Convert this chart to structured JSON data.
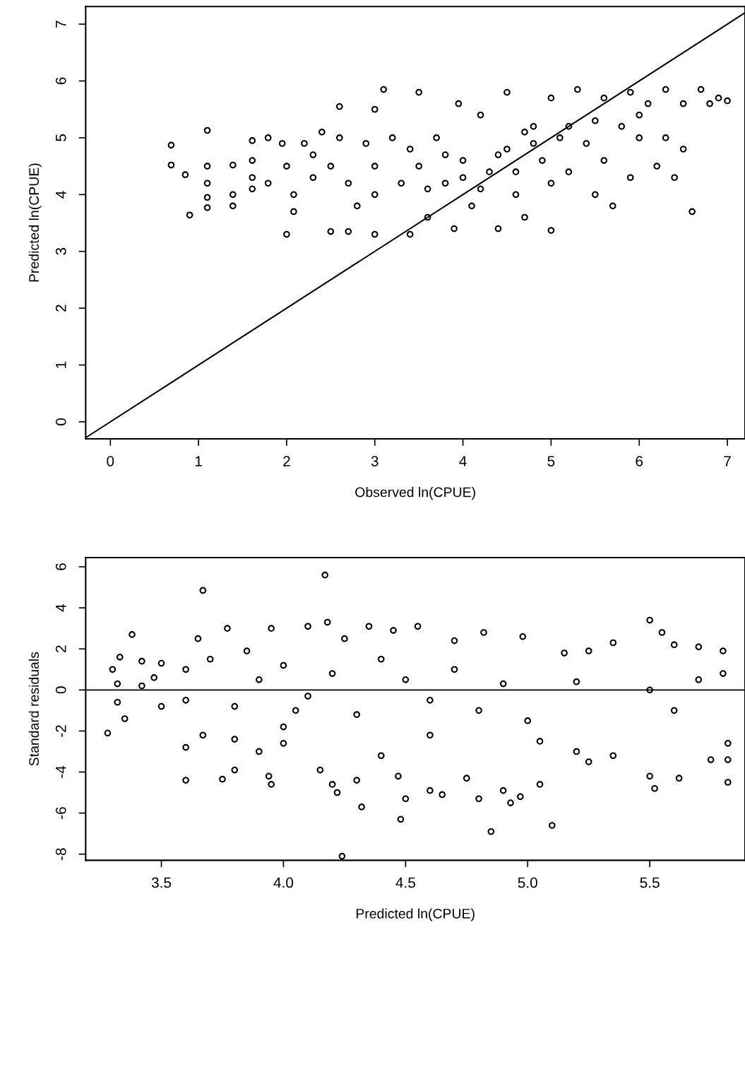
{
  "chart_data": [
    {
      "type": "scatter",
      "xlabel": "Observed ln(CPUE)",
      "ylabel": "Predicted ln(CPUE)",
      "xlim": [
        -0.28,
        7.2
      ],
      "ylim": [
        -0.3,
        7.31
      ],
      "xticks": [
        0,
        1,
        2,
        3,
        4,
        5,
        6,
        7
      ],
      "yticks": [
        0,
        1,
        2,
        3,
        4,
        5,
        6,
        7
      ],
      "grid": false,
      "legend": false,
      "series": [
        {
          "marker": "circle",
          "color": "#000000",
          "x": [
            0.69,
            0.69,
            0.9,
            0.85,
            1.1,
            1.1,
            1.1,
            1.1,
            1.1,
            1.39,
            1.39,
            1.39,
            1.61,
            1.61,
            1.61,
            1.61,
            1.79,
            1.79,
            1.95,
            2.0,
            2.0,
            2.08,
            2.08,
            2.2,
            2.3,
            2.3,
            2.4,
            2.5,
            2.6,
            2.5,
            2.7,
            2.6,
            2.7,
            2.8,
            2.9,
            3.0,
            3.0,
            3.0,
            3.1,
            3.0,
            3.2,
            3.3,
            3.4,
            3.5,
            3.5,
            3.6,
            3.7,
            3.8,
            3.9,
            3.95,
            4.0,
            4.1,
            4.2,
            4.3,
            4.4,
            4.5,
            4.5,
            4.6,
            4.7,
            4.8,
            4.9,
            5.0,
            5.0,
            5.0,
            5.1,
            5.2,
            5.3,
            5.4,
            5.5,
            5.6,
            5.6,
            5.7,
            5.8,
            5.9,
            5.9,
            6.0,
            6.1,
            6.2,
            6.3,
            6.3,
            6.4,
            6.5,
            6.5,
            6.6,
            6.7,
            6.8,
            6.9,
            7.0,
            4.0,
            4.2,
            4.4,
            4.6,
            4.8,
            3.8,
            3.6,
            5.2,
            5.5,
            4.7,
            3.4,
            6.0
          ],
          "values": [
            4.87,
            4.52,
            3.64,
            4.35,
            5.13,
            4.5,
            4.2,
            3.95,
            3.77,
            4.52,
            4.0,
            3.8,
            4.95,
            4.6,
            4.3,
            4.1,
            5.0,
            4.2,
            4.9,
            3.3,
            4.5,
            4.0,
            3.7,
            4.9,
            4.7,
            4.3,
            5.1,
            4.5,
            5.0,
            3.35,
            3.35,
            5.55,
            4.2,
            3.8,
            4.9,
            5.5,
            4.5,
            3.3,
            5.85,
            4.0,
            5.0,
            4.2,
            3.3,
            5.8,
            4.5,
            3.6,
            5.0,
            4.2,
            3.4,
            5.6,
            4.6,
            3.8,
            5.4,
            4.4,
            3.4,
            5.8,
            4.8,
            4.0,
            3.6,
            5.2,
            4.6,
            5.7,
            3.37,
            4.2,
            5.0,
            4.4,
            5.85,
            4.9,
            4.0,
            5.7,
            4.6,
            3.8,
            5.2,
            5.8,
            4.3,
            5.0,
            5.6,
            4.5,
            5.85,
            5.0,
            4.3,
            5.6,
            4.8,
            3.7,
            5.85,
            5.6,
            5.7,
            5.65,
            4.3,
            4.1,
            4.7,
            4.4,
            4.9,
            4.7,
            4.1,
            5.2,
            5.3,
            5.1,
            4.8,
            5.4
          ]
        },
        {
          "type": "line",
          "marker": "none",
          "color": "#000000",
          "x": [
            -0.28,
            7.2
          ],
          "values": [
            -0.28,
            7.2
          ]
        }
      ]
    },
    {
      "type": "scatter",
      "xlabel": "Predicted ln(CPUE)",
      "ylabel": "Standard residuals",
      "xlim": [
        3.19,
        5.89
      ],
      "ylim": [
        -8.3,
        6.45
      ],
      "xticks": [
        {
          "value": 3.5,
          "label": "3.5"
        },
        {
          "value": 4.0,
          "label": "4.0"
        },
        {
          "value": 4.5,
          "label": "4.5"
        },
        {
          "value": 5.0,
          "label": "5.0"
        },
        {
          "value": 5.5,
          "label": "5.5"
        }
      ],
      "yticks": [
        -8,
        -6,
        -4,
        -2,
        0,
        2,
        4,
        6
      ],
      "grid": false,
      "legend": false,
      "ref_lines": [
        {
          "axis": "y",
          "value": 0,
          "color": "#000000"
        }
      ],
      "series": [
        {
          "marker": "circle",
          "color": "#000000",
          "x": [
            3.28,
            3.3,
            3.32,
            3.32,
            3.33,
            3.35,
            3.38,
            3.42,
            3.42,
            3.47,
            3.5,
            3.5,
            3.6,
            3.6,
            3.6,
            3.6,
            3.65,
            3.67,
            3.67,
            3.7,
            3.75,
            3.77,
            3.8,
            3.8,
            3.85,
            3.9,
            3.94,
            3.95,
            3.95,
            4.0,
            4.0,
            4.05,
            4.1,
            4.15,
            4.18,
            4.17,
            4.2,
            4.22,
            4.24,
            4.25,
            4.3,
            4.32,
            4.35,
            4.4,
            4.45,
            4.47,
            4.48,
            4.5,
            4.55,
            4.6,
            4.65,
            4.7,
            4.75,
            4.8,
            4.82,
            4.85,
            4.9,
            4.93,
            4.97,
            4.98,
            5.05,
            5.1,
            5.15,
            5.2,
            5.25,
            5.25,
            5.35,
            5.35,
            5.5,
            5.5,
            5.52,
            5.55,
            5.6,
            5.62,
            5.7,
            5.75,
            5.8,
            5.82,
            5.82,
            5.82,
            4.5,
            4.6,
            4.7,
            4.8,
            4.9,
            5.0,
            4.2,
            4.3,
            4.4,
            4.1,
            3.9,
            3.8,
            5.7,
            5.6,
            5.5,
            5.8,
            5.2,
            5.05,
            4.6,
            4.0
          ],
          "values": [
            -2.1,
            1.0,
            0.3,
            -0.6,
            1.6,
            -1.4,
            2.7,
            1.4,
            0.2,
            0.6,
            1.3,
            -0.8,
            -4.4,
            -2.8,
            1.0,
            -0.5,
            2.5,
            4.85,
            -2.2,
            1.5,
            -4.35,
            3.0,
            -3.9,
            -2.4,
            1.9,
            -3.0,
            -4.2,
            -4.6,
            3.0,
            -2.6,
            1.2,
            -1.0,
            3.1,
            -3.9,
            3.3,
            5.6,
            -4.6,
            -5.0,
            -8.1,
            2.5,
            -4.4,
            -5.7,
            3.1,
            -3.2,
            2.9,
            -4.2,
            -6.3,
            -5.3,
            3.1,
            -4.9,
            -5.1,
            2.4,
            -4.3,
            -5.3,
            2.8,
            -6.9,
            -4.9,
            -5.5,
            -5.2,
            2.6,
            -4.6,
            -6.6,
            1.8,
            -3.0,
            1.9,
            -3.5,
            2.3,
            -3.2,
            3.4,
            -4.2,
            -4.8,
            2.8,
            2.2,
            -4.3,
            2.1,
            -3.4,
            1.9,
            -4.5,
            -3.4,
            -2.6,
            0.5,
            -0.5,
            1.0,
            -1.0,
            0.3,
            -1.5,
            0.8,
            -1.2,
            1.5,
            -0.3,
            0.5,
            -0.8,
            0.5,
            -1.0,
            0.0,
            0.8,
            0.4,
            -2.5,
            -2.2,
            -1.8
          ]
        }
      ]
    }
  ]
}
